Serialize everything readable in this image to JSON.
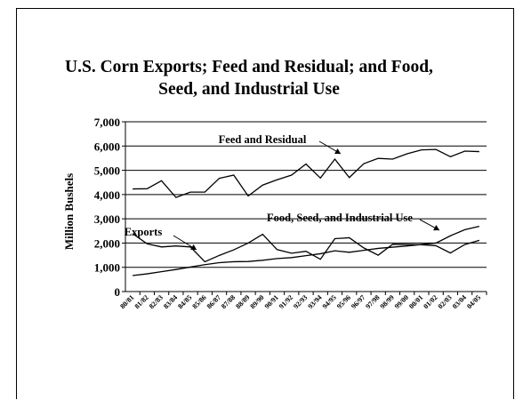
{
  "chart_data": {
    "type": "line",
    "title": [
      "U.S. Corn Exports; Feed and Residual; and Food,",
      "Seed, and Industrial Use"
    ],
    "ylabel": "Million Bushels",
    "xlabel": "",
    "ylim": [
      0,
      7000
    ],
    "yticks": [
      "0",
      "1,000",
      "2,000",
      "3,000",
      "4,000",
      "5,000",
      "6,000",
      "7,000"
    ],
    "grid": true,
    "categories": [
      "80/81",
      "81/82",
      "82/83",
      "83/84",
      "84/85",
      "85/86",
      "86/87",
      "87/88",
      "88/89",
      "89/90",
      "90/91",
      "91/92",
      "92/93",
      "93/94",
      "94/95",
      "95/96",
      "96/97",
      "97/98",
      "98/99",
      "99/00",
      "00/01",
      "01/02",
      "02/03",
      "03/04",
      "04/05"
    ],
    "series": [
      {
        "name": "Feed and Residual",
        "values": [
          4230,
          4240,
          4570,
          3880,
          4100,
          4100,
          4670,
          4800,
          3940,
          4390,
          4610,
          4800,
          5260,
          4680,
          5460,
          4700,
          5270,
          5490,
          5460,
          5680,
          5840,
          5860,
          5560,
          5790,
          5770
        ]
      },
      {
        "name": "Exports",
        "values": [
          2390,
          1970,
          1840,
          1880,
          1840,
          1230,
          1490,
          1720,
          2000,
          2360,
          1730,
          1580,
          1660,
          1330,
          2180,
          2220,
          1800,
          1500,
          1950,
          1940,
          1930,
          1890,
          1590,
          1940,
          2110
        ]
      },
      {
        "name": "Food, Seed, and Industrial Use",
        "values": [
          660,
          730,
          820,
          910,
          1010,
          1110,
          1190,
          1230,
          1240,
          1290,
          1360,
          1400,
          1480,
          1560,
          1680,
          1620,
          1700,
          1780,
          1830,
          1880,
          1940,
          2000,
          2300,
          2550,
          2690
        ]
      }
    ],
    "annotations": [
      {
        "text": "Feed and Residual",
        "series": "Feed and Residual"
      },
      {
        "text": "Exports",
        "series": "Exports"
      },
      {
        "text": "Food, Seed, and Industrial Use",
        "series": "Food, Seed, and Industrial Use"
      }
    ]
  },
  "colors": {
    "line": "#000000",
    "grid": "#000000",
    "background": "#ffffff"
  }
}
